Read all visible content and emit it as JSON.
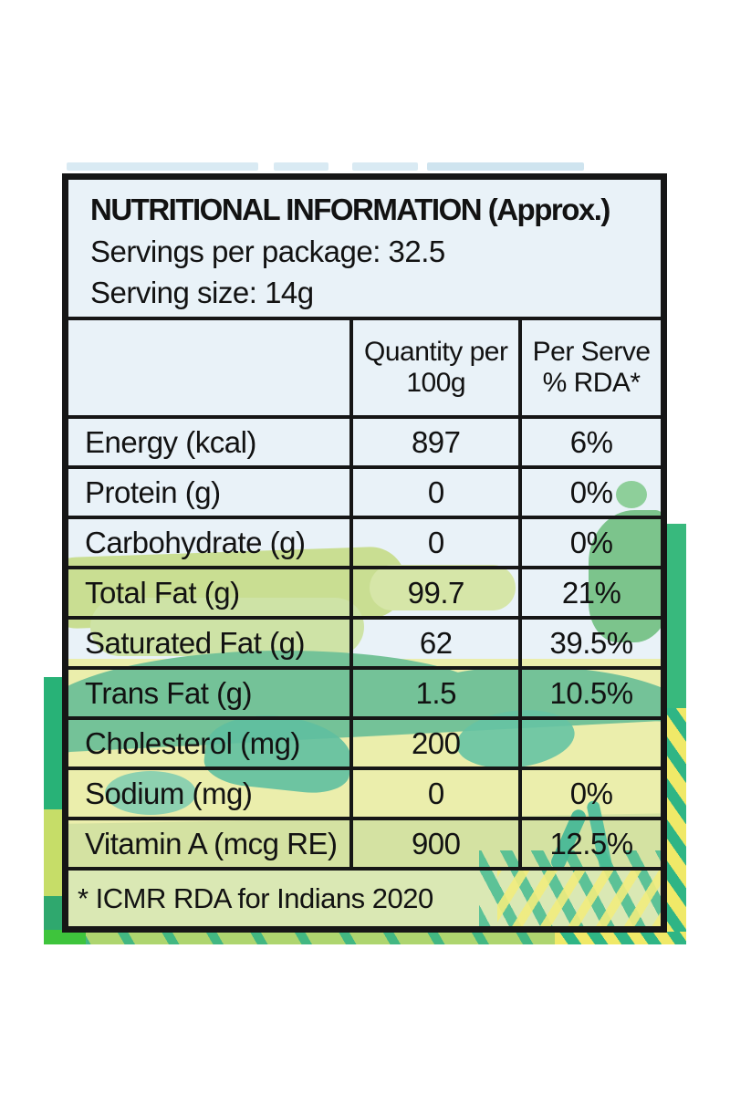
{
  "label": {
    "title": "NUTRITIONAL INFORMATION (Approx.)",
    "servings_per_package": "Servings per package: 32.5",
    "serving_size": "Serving size: 14g",
    "columns": {
      "nutrient": "",
      "quantity": "Quantity per\n100g",
      "per_serve": "Per Serve\n% RDA*"
    },
    "rows": [
      {
        "nutrient": "Energy (kcal)",
        "quantity": "897",
        "rda": "6%"
      },
      {
        "nutrient": "Protein (g)",
        "quantity": "0",
        "rda": "0%"
      },
      {
        "nutrient": "Carbohydrate (g)",
        "quantity": "0",
        "rda": "0%"
      },
      {
        "nutrient": "Total Fat (g)",
        "quantity": "99.7",
        "rda": "21%"
      },
      {
        "nutrient": "Saturated Fat (g)",
        "quantity": "62",
        "rda": "39.5%"
      },
      {
        "nutrient": "Trans Fat (g)",
        "quantity": "1.5",
        "rda": "10.5%"
      },
      {
        "nutrient": "Cholesterol (mg)",
        "quantity": "200",
        "rda": ""
      },
      {
        "nutrient": "Sodium (mg)",
        "quantity": "0",
        "rda": "0%"
      },
      {
        "nutrient": "Vitamin A (mcg RE)",
        "quantity": "900",
        "rda": "12.5%"
      }
    ],
    "footnote": "* ICMR RDA for Indians 2020"
  },
  "colors": {
    "border_black": "#161616",
    "sky_blue": "#e9f2f8",
    "canopy_green": "#c9de92",
    "hill_green": "#74c298",
    "meadow_yellow": "#ebeeac",
    "teal_accent": "#38b97d",
    "strip_yellow": "#f0e968"
  }
}
